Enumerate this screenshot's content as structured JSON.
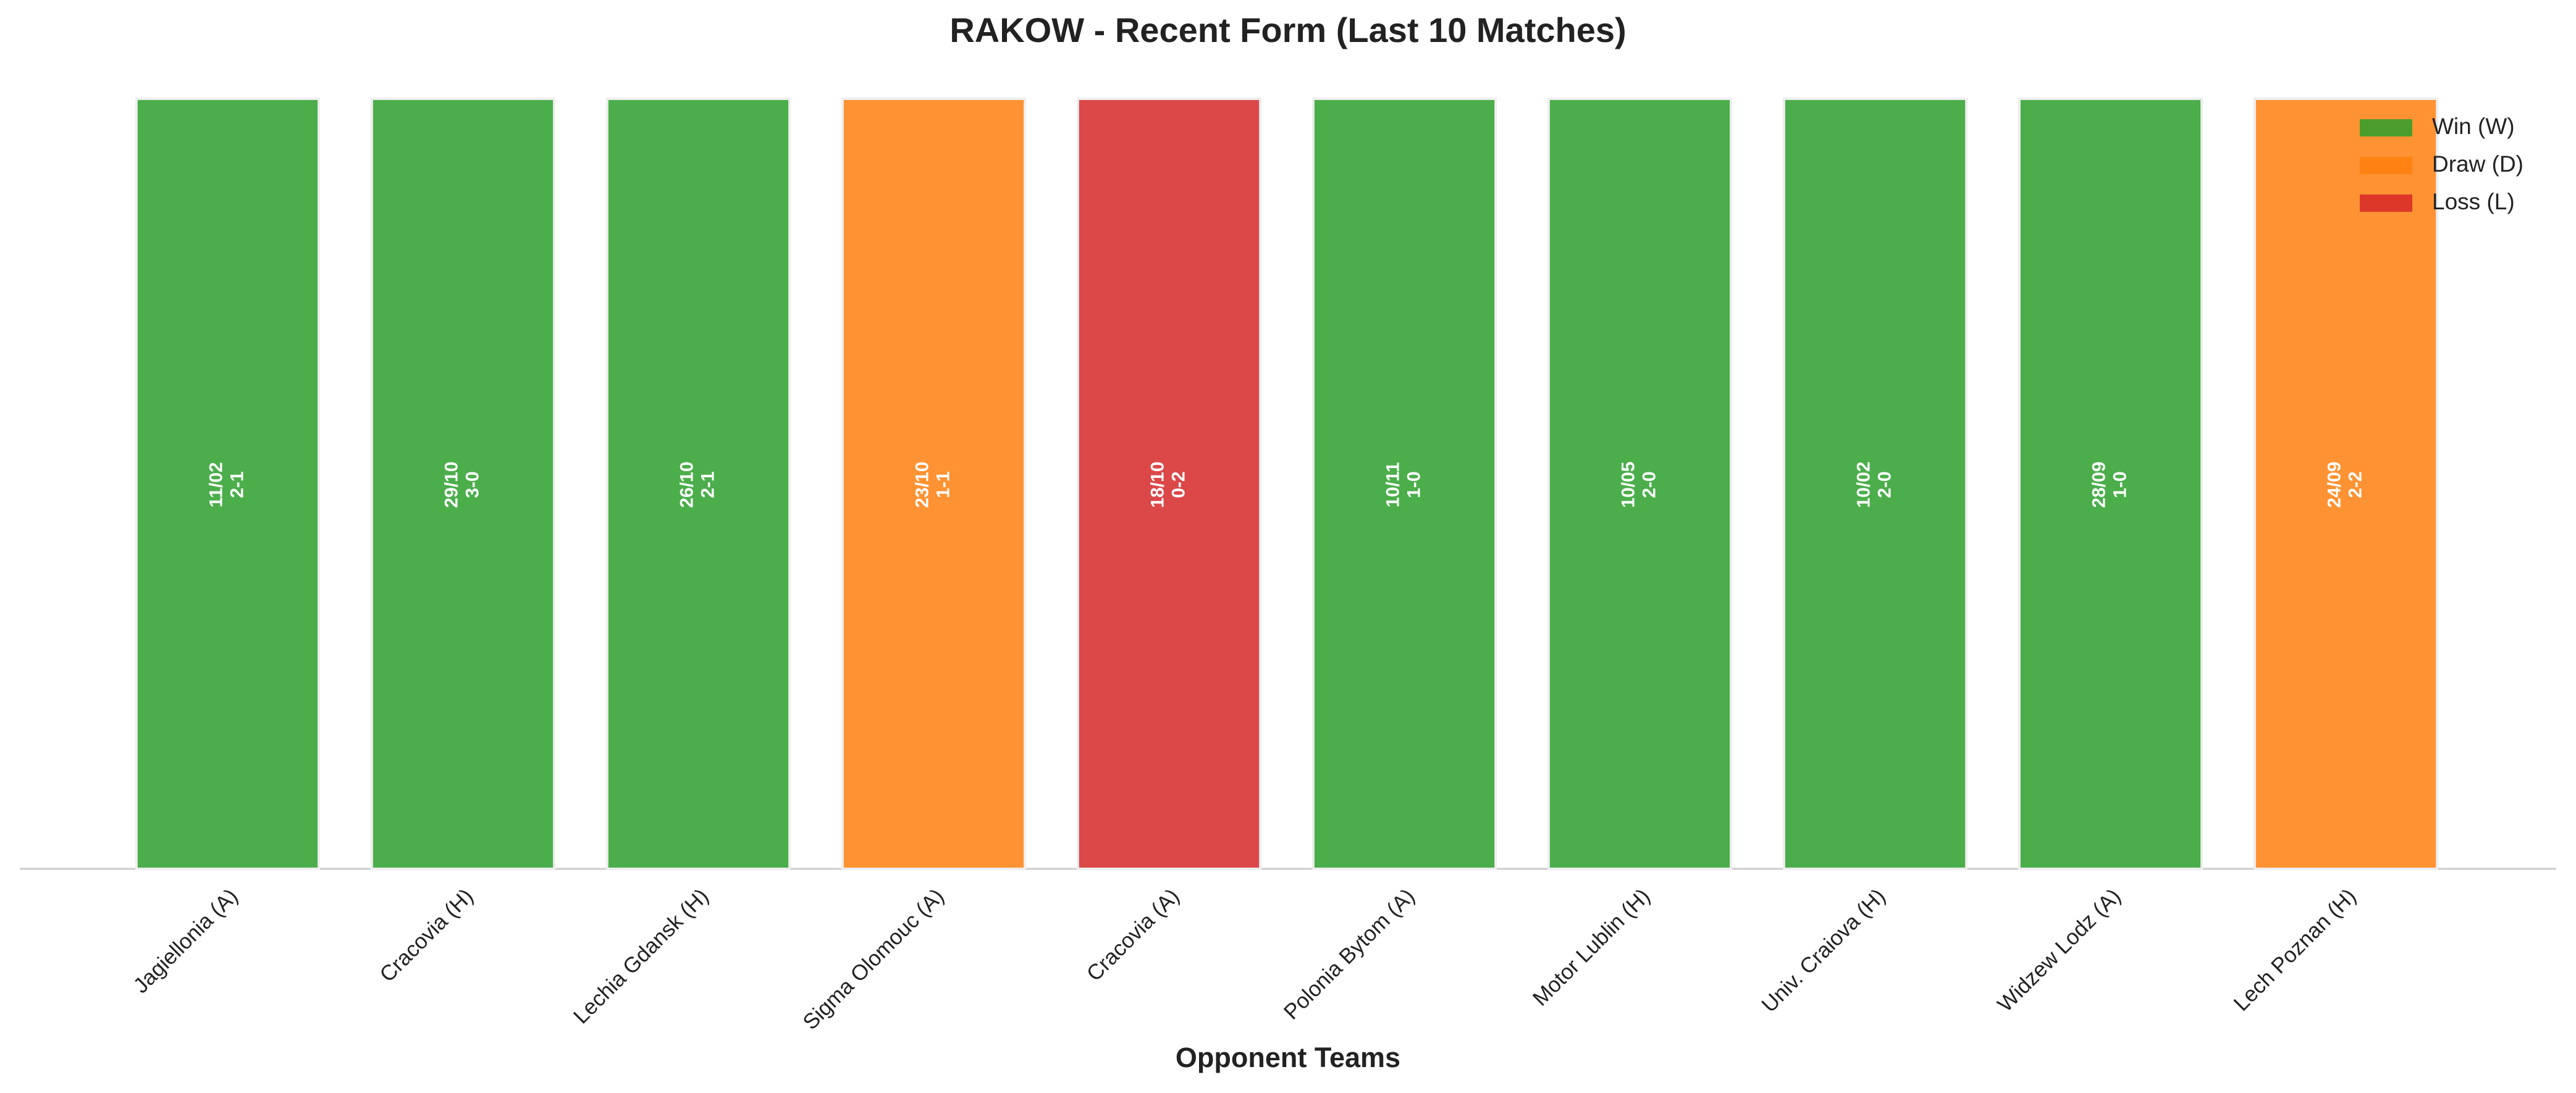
{
  "chart_data": {
    "type": "bar",
    "title": "RAKOW - Recent Form (Last 10 Matches)",
    "x_label": "Opponent Teams",
    "categories": [
      "Jagiellonia (A)",
      "Cracovia (H)",
      "Lechia Gdansk (H)",
      "Sigma Olomouc (A)",
      "Cracovia (A)",
      "Polonia Bytom (A)",
      "Motor Lublin (H)",
      "Univ. Craiova (H)",
      "Widzew Lodz (A)",
      "Lech Poznan (H)"
    ],
    "dates": [
      "11/02",
      "29/10",
      "26/10",
      "23/10",
      "18/10",
      "10/11",
      "10/05",
      "10/02",
      "28/09",
      "24/09"
    ],
    "scores": [
      "2-1",
      "3-0",
      "2-1",
      "1-1",
      "0-2",
      "1-0",
      "2-0",
      "2-0",
      "1-0",
      "2-2"
    ],
    "series": [
      {
        "name": "Win (W)",
        "color": "#2ca02c",
        "values": [
          1,
          1,
          1,
          null,
          null,
          1,
          1,
          1,
          1,
          null
        ]
      },
      {
        "name": "Draw (D)",
        "color": "#ff7f0e",
        "values": [
          null,
          null,
          null,
          1,
          null,
          null,
          null,
          null,
          null,
          1
        ]
      },
      {
        "name": "Loss (L)",
        "color": "#d62728",
        "values": [
          null,
          null,
          null,
          null,
          1,
          null,
          null,
          null,
          null,
          null
        ]
      }
    ],
    "ylim": [
      0,
      1
    ],
    "legend": "upper right"
  }
}
